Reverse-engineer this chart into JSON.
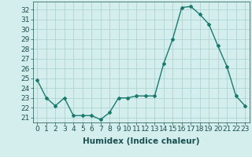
{
  "x": [
    0,
    1,
    2,
    3,
    4,
    5,
    6,
    7,
    8,
    9,
    10,
    11,
    12,
    13,
    14,
    15,
    16,
    17,
    18,
    19,
    20,
    21,
    22,
    23
  ],
  "y": [
    24.8,
    23.0,
    22.2,
    23.0,
    21.2,
    21.2,
    21.2,
    20.8,
    21.5,
    23.0,
    23.0,
    23.2,
    23.2,
    23.2,
    26.5,
    29.0,
    32.2,
    32.3,
    31.5,
    30.5,
    28.3,
    26.2,
    23.2,
    22.2
  ],
  "line_color": "#1a7a6e",
  "marker": "D",
  "marker_size": 2,
  "bg_color": "#d4eeed",
  "grid_color": "#aacece",
  "xlabel": "Humidex (Indice chaleur)",
  "xlabel_fontsize": 7.5,
  "tick_label_color": "#1a5050",
  "ylim": [
    20.5,
    32.8
  ],
  "xlim": [
    -0.5,
    23.5
  ],
  "yticks": [
    21,
    22,
    23,
    24,
    25,
    26,
    27,
    28,
    29,
    30,
    31,
    32
  ],
  "xticks": [
    0,
    1,
    2,
    3,
    4,
    5,
    6,
    7,
    8,
    9,
    10,
    11,
    12,
    13,
    14,
    15,
    16,
    17,
    18,
    19,
    20,
    21,
    22,
    23
  ],
  "tick_fontsize": 6.5
}
